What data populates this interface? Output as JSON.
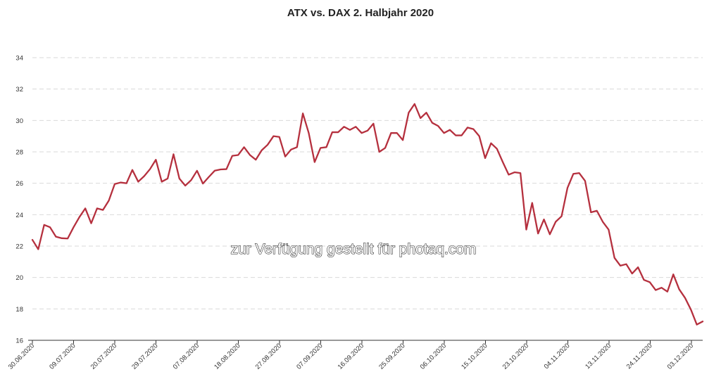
{
  "chart_data": {
    "type": "line",
    "title": "ATX vs. DAX 2. Halbjahr 2020",
    "xlabel": "",
    "ylabel": "",
    "ylim": [
      16,
      34
    ],
    "yticks": [
      "16",
      "18",
      "20",
      "22",
      "24",
      "26",
      "28",
      "30",
      "32",
      "34"
    ],
    "xticks": [
      "30.06.2020",
      "09.07.2020",
      "20.07.2020",
      "29.07.2020",
      "07.08.2020",
      "18.08.2020",
      "27.08.2020",
      "07.09.2020",
      "16.09.2020",
      "25.09.2020",
      "06.10.2020",
      "15.10.2020",
      "23.10.2020",
      "04.11.2020",
      "13.11.2020",
      "24.11.2020",
      "03.12.2020"
    ],
    "grid": "horizontal dashed",
    "legend": "none",
    "series": [
      {
        "color": "#b5303e",
        "values": [
          22.4,
          21.8,
          23.35,
          23.2,
          22.6,
          22.5,
          22.48,
          23.2,
          23.85,
          24.4,
          23.45,
          24.4,
          24.3,
          24.9,
          25.95,
          26.05,
          26.0,
          26.85,
          26.1,
          26.45,
          26.9,
          27.5,
          26.1,
          26.3,
          27.85,
          26.3,
          25.85,
          26.2,
          26.8,
          25.98,
          26.4,
          26.8,
          26.88,
          26.9,
          27.75,
          27.8,
          28.3,
          27.8,
          27.5,
          28.1,
          28.45,
          29.0,
          28.95,
          27.7,
          28.15,
          28.3,
          30.45,
          29.2,
          27.35,
          28.25,
          28.3,
          29.25,
          29.25,
          29.6,
          29.4,
          29.6,
          29.2,
          29.35,
          29.8,
          28.0,
          28.25,
          29.2,
          29.2,
          28.75,
          30.5,
          31.05,
          30.15,
          30.5,
          29.85,
          29.65,
          29.2,
          29.4,
          29.05,
          29.05,
          29.55,
          29.45,
          29.0,
          27.6,
          28.55,
          28.2,
          27.35,
          26.55,
          26.7,
          26.65,
          23.05,
          24.75,
          22.8,
          23.7,
          22.75,
          23.55,
          23.9,
          25.7,
          26.6,
          26.65,
          26.15,
          24.15,
          24.25,
          23.55,
          23.05,
          21.25,
          20.75,
          20.85,
          20.25,
          20.65,
          19.85,
          19.7,
          19.2,
          19.35,
          19.1,
          20.2,
          19.25,
          18.7,
          17.95,
          17.0,
          17.2
        ]
      }
    ],
    "annotation": "zur Verfügung gestellt für photaq.com"
  }
}
